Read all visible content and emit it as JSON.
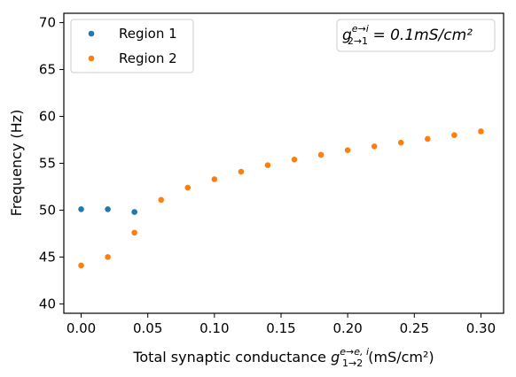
{
  "chart_data": {
    "type": "scatter",
    "xlabel": "Total synaptic conductance",
    "xlabel_symbol": "g",
    "xlabel_sup": "e→e, i",
    "xlabel_sub": "1→2",
    "xlabel_unit": "(mS/cm²)",
    "ylabel": "Frequency",
    "ylabel_unit": "(Hz)",
    "xlim": [
      -0.013,
      0.317
    ],
    "ylim": [
      39.0,
      71.0
    ],
    "xticks": [
      0.0,
      0.05,
      0.1,
      0.15,
      0.2,
      0.25,
      0.3
    ],
    "xtick_labels": [
      "0.00",
      "0.05",
      "0.10",
      "0.15",
      "0.20",
      "0.25",
      "0.30"
    ],
    "yticks": [
      40,
      45,
      50,
      55,
      60,
      65,
      70
    ],
    "ytick_labels": [
      "40",
      "45",
      "50",
      "55",
      "60",
      "65",
      "70"
    ],
    "grid": false,
    "legend_position": "top-left",
    "annotation": {
      "symbol": "g",
      "sup": "e→i",
      "sub": "2→1",
      "rhs": " = 0.1mS/cm²"
    },
    "series": [
      {
        "name": "Region 1",
        "color": "#1f77b4",
        "x": [
          0.0,
          0.02,
          0.04
        ],
        "y": [
          50.1,
          50.1,
          49.8
        ]
      },
      {
        "name": "Region 2",
        "color": "#ff7f0e",
        "x": [
          0.0,
          0.02,
          0.04,
          0.06,
          0.08,
          0.1,
          0.12,
          0.14,
          0.16,
          0.18,
          0.2,
          0.22,
          0.24,
          0.26,
          0.28,
          0.3
        ],
        "y": [
          44.1,
          45.0,
          47.6,
          51.1,
          52.4,
          53.3,
          54.1,
          54.8,
          55.4,
          55.9,
          56.4,
          56.8,
          57.2,
          57.6,
          58.0,
          58.4
        ]
      }
    ]
  }
}
